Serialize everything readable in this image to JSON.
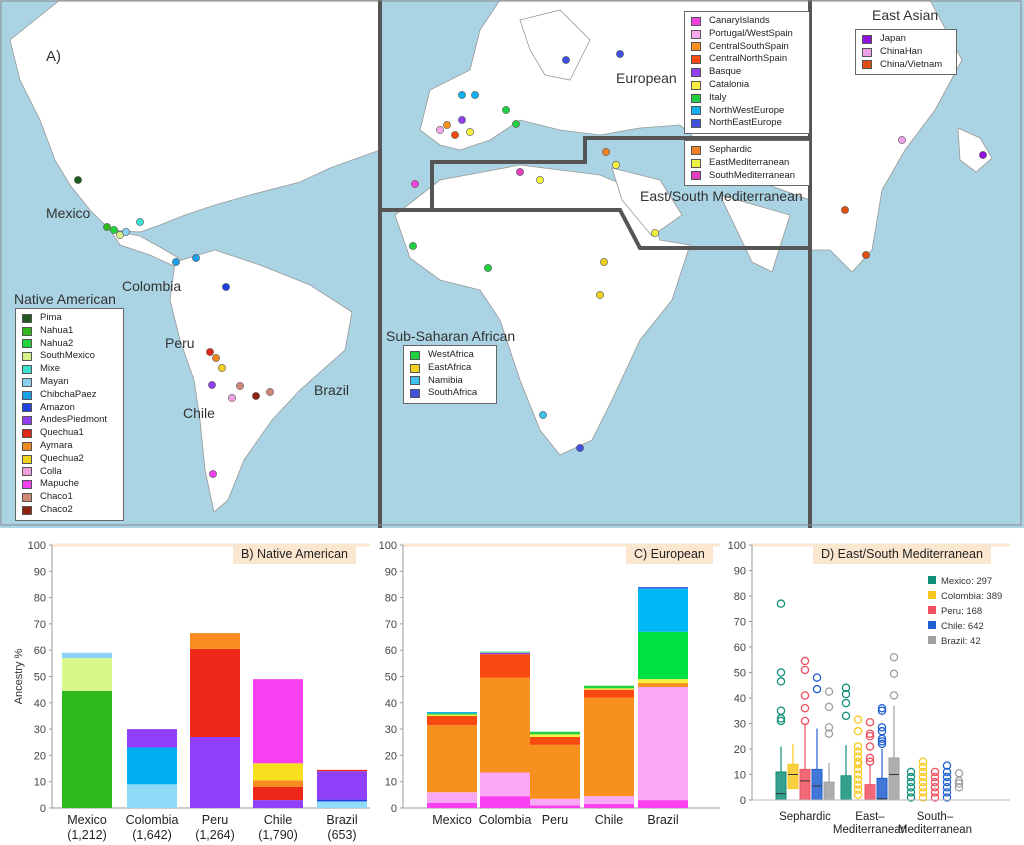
{
  "map": {
    "panel_label": "A)",
    "country_labels": [
      {
        "text": "Mexico",
        "color": "#1a8a5a"
      },
      {
        "text": "Colombia",
        "color": "#e8c020"
      },
      {
        "text": "Peru",
        "color": "#f06070"
      },
      {
        "text": "Chile",
        "color": "#2070d0"
      },
      {
        "text": "Brazil",
        "color": "#777777"
      }
    ],
    "region_labels": {
      "european": "European",
      "med": "East/South Mediterranean",
      "east_asian": "East Asian",
      "ssa": "Sub-Saharan African",
      "native": "Native American"
    },
    "legends": {
      "native": [
        {
          "label": "Pima",
          "color": "#1e5a1e"
        },
        {
          "label": "Nahua1",
          "color": "#2db81c"
        },
        {
          "label": "Nahua2",
          "color": "#22d43a"
        },
        {
          "label": "SouthMexico",
          "color": "#d8f28a"
        },
        {
          "label": "Mixe",
          "color": "#3ae0d0"
        },
        {
          "label": "Mayan",
          "color": "#8ad0f0"
        },
        {
          "label": "ChibchaPaez",
          "color": "#1aa0e8"
        },
        {
          "label": "Amazon",
          "color": "#2040e0"
        },
        {
          "label": "AndesPiedmont",
          "color": "#9040f0"
        },
        {
          "label": "Quechua1",
          "color": "#e02818"
        },
        {
          "label": "Aymara",
          "color": "#f08820"
        },
        {
          "label": "Quechua2",
          "color": "#f0d020"
        },
        {
          "label": "Colla",
          "color": "#f0a0e0"
        },
        {
          "label": "Mapuche",
          "color": "#f040f0"
        },
        {
          "label": "Chaco1",
          "color": "#d08870"
        },
        {
          "label": "Chaco2",
          "color": "#902010"
        }
      ],
      "european": [
        {
          "label": "CanaryIslands",
          "color": "#f040e0"
        },
        {
          "label": "Portugal/WestSpain",
          "color": "#f8a8f0"
        },
        {
          "label": "CentralSouthSpain",
          "color": "#f89020"
        },
        {
          "label": "CentralNorthSpain",
          "color": "#f84a10"
        },
        {
          "label": "Basque",
          "color": "#9040f0"
        },
        {
          "label": "Catalonia",
          "color": "#f8f040"
        },
        {
          "label": "Italy",
          "color": "#20d040"
        },
        {
          "label": "NorthWestEurope",
          "color": "#10b0f0"
        },
        {
          "label": "NorthEastEurope",
          "color": "#4050e0"
        }
      ],
      "med": [
        {
          "label": "Sephardic",
          "color": "#f08020"
        },
        {
          "label": "EastMediterranean",
          "color": "#f0f040"
        },
        {
          "label": "SouthMediterranean",
          "color": "#e040c0"
        }
      ],
      "east_asian": [
        {
          "label": "Japan",
          "color": "#9010e0"
        },
        {
          "label": "ChinaHan",
          "color": "#f0a0e8"
        },
        {
          "label": "China/Vietnam",
          "color": "#e05010"
        }
      ],
      "ssa": [
        {
          "label": "WestAfrica",
          "color": "#20d040"
        },
        {
          "label": "EastAfrica",
          "color": "#f0d020"
        },
        {
          "label": "Namibia",
          "color": "#40c0f0"
        },
        {
          "label": "SouthAfrica",
          "color": "#4050e0"
        }
      ]
    },
    "colors": {
      "ocean": "#aad3e3",
      "land": "#ffffff",
      "border": "#999999",
      "divider": "#555555"
    }
  },
  "chart_data": [
    {
      "type": "bar",
      "stacked": true,
      "title": "B) Native American",
      "ylabel": "Ancestry %",
      "ylim": [
        0,
        100
      ],
      "yticks": [
        "0",
        "10",
        "20",
        "30",
        "40",
        "50",
        "60",
        "70",
        "80",
        "90",
        "100"
      ],
      "categories": [
        "Mexico\n(1,212)",
        "Colombia\n(1,642)",
        "Peru\n(1,264)",
        "Chile\n(1,790)",
        "Brazil\n(653)"
      ],
      "category_names": [
        "Mexico",
        "Colombia",
        "Peru",
        "Chile",
        "Brazil"
      ],
      "category_counts": [
        "(1,212)",
        "(1,642)",
        "(1,264)",
        "(1,790)",
        "(653)"
      ],
      "stacks": [
        [
          {
            "component": "Nahua1",
            "value": 44.5,
            "color": "#2db81c"
          },
          {
            "component": "SouthMexico",
            "value": 12.5,
            "color": "#d8f88a"
          },
          {
            "component": "Mayan",
            "value": 2,
            "color": "#8ad0f8"
          }
        ],
        [
          {
            "component": "Mayan",
            "value": 9,
            "color": "#90dcf8"
          },
          {
            "component": "ChibchaPaez",
            "value": 14,
            "color": "#00b0f0"
          },
          {
            "component": "AndesPiedmont",
            "value": 7,
            "color": "#9040f8"
          }
        ],
        [
          {
            "component": "AndesPiedmont",
            "value": 27,
            "color": "#9040f8"
          },
          {
            "component": "Quechua1",
            "value": 33.5,
            "color": "#ec2818"
          },
          {
            "component": "Aymara",
            "value": 6,
            "color": "#f88c20"
          }
        ],
        [
          {
            "component": "AndesPiedmont",
            "value": 3,
            "color": "#9040f8"
          },
          {
            "component": "Quechua1",
            "value": 5,
            "color": "#ec2818"
          },
          {
            "component": "Aymara",
            "value": 2.5,
            "color": "#f88c20"
          },
          {
            "component": "Quechua2",
            "value": 6.5,
            "color": "#f8e020"
          },
          {
            "component": "Mapuche",
            "value": 32,
            "color": "#f840f0"
          }
        ],
        [
          {
            "component": "Mayan",
            "value": 2.5,
            "color": "#90dcf8"
          },
          {
            "component": "Amazon",
            "value": 0.7,
            "color": "#2040e0"
          },
          {
            "component": "AndesPiedmont",
            "value": 10.8,
            "color": "#9040f8"
          },
          {
            "component": "Quechua1",
            "value": 0.5,
            "color": "#ec2818"
          }
        ]
      ]
    },
    {
      "type": "bar",
      "stacked": true,
      "title": "C) European",
      "ylim": [
        0,
        100
      ],
      "yticks": [
        "0",
        "10",
        "20",
        "30",
        "40",
        "50",
        "60",
        "70",
        "80",
        "90",
        "100"
      ],
      "category_names": [
        "Mexico",
        "Colombia",
        "Peru",
        "Chile",
        "Brazil"
      ],
      "stacks": [
        [
          {
            "component": "CanaryIslands",
            "value": 2,
            "color": "#f840f0"
          },
          {
            "component": "Portugal/WestSpain",
            "value": 4,
            "color": "#f8a8f4"
          },
          {
            "component": "CentralSouthSpain",
            "value": 25.5,
            "color": "#f89020"
          },
          {
            "component": "CentralNorthSpain",
            "value": 3.5,
            "color": "#f84a10"
          },
          {
            "component": "Catalonia",
            "value": 0.5,
            "color": "#f8f040"
          },
          {
            "component": "Italy",
            "value": 0.5,
            "color": "#20d040"
          },
          {
            "component": "NorthWestEurope",
            "value": 0.5,
            "color": "#10b0f0"
          }
        ],
        [
          {
            "component": "CanaryIslands",
            "value": 4.5,
            "color": "#f840f0"
          },
          {
            "component": "Portugal/WestSpain",
            "value": 9,
            "color": "#f8a8f4"
          },
          {
            "component": "CentralSouthSpain",
            "value": 36,
            "color": "#f89020"
          },
          {
            "component": "CentralNorthSpain",
            "value": 9,
            "color": "#f84a10"
          },
          {
            "component": "Basque",
            "value": 0.5,
            "color": "#9040f0"
          },
          {
            "component": "Italy",
            "value": 0.5,
            "color": "#60d890"
          }
        ],
        [
          {
            "component": "CanaryIslands",
            "value": 1,
            "color": "#f840f0"
          },
          {
            "component": "Portugal/WestSpain",
            "value": 2.5,
            "color": "#f8a8f4"
          },
          {
            "component": "CentralSouthSpain",
            "value": 20.5,
            "color": "#f89020"
          },
          {
            "component": "CentralNorthSpain",
            "value": 3,
            "color": "#f84a10"
          },
          {
            "component": "Catalonia",
            "value": 1,
            "color": "#f8f040"
          },
          {
            "component": "Italy",
            "value": 1,
            "color": "#20d040"
          }
        ],
        [
          {
            "component": "CanaryIslands",
            "value": 1.5,
            "color": "#f840f0"
          },
          {
            "component": "Portugal/WestSpain",
            "value": 3,
            "color": "#f8a8f4"
          },
          {
            "component": "CentralSouthSpain",
            "value": 37.5,
            "color": "#f89020"
          },
          {
            "component": "CentralNorthSpain",
            "value": 3,
            "color": "#f84a10"
          },
          {
            "component": "Catalonia",
            "value": 0.5,
            "color": "#f8f040"
          },
          {
            "component": "Italy",
            "value": 1,
            "color": "#20d040"
          }
        ],
        [
          {
            "component": "CanaryIslands",
            "value": 3,
            "color": "#f840f0"
          },
          {
            "component": "Portugal/WestSpain",
            "value": 43,
            "color": "#f8a8f4"
          },
          {
            "component": "CentralSouthSpain",
            "value": 1.5,
            "color": "#f89020"
          },
          {
            "component": "Catalonia",
            "value": 1.5,
            "color": "#f8f040"
          },
          {
            "component": "Italy",
            "value": 18,
            "color": "#00e040"
          },
          {
            "component": "NorthWestEurope",
            "value": 16.5,
            "color": "#00b8f8"
          },
          {
            "component": "NorthEastEurope",
            "value": 0.5,
            "color": "#4050e0"
          }
        ]
      ]
    },
    {
      "type": "boxplot",
      "title": "D) East/South Mediterranean",
      "ylim": [
        0,
        100
      ],
      "yticks": [
        "0",
        "10",
        "20",
        "30",
        "40",
        "50",
        "60",
        "70",
        "80",
        "90",
        "100"
      ],
      "groups": [
        "Sephardic",
        "East–\nMediterranean",
        "South–\nMediterranean"
      ],
      "group_lines": [
        [
          "Sephardic"
        ],
        [
          "East–",
          "Mediterranean"
        ],
        [
          "South–",
          "Mediterranean"
        ]
      ],
      "legend": [
        {
          "label": "Mexico: 297",
          "color": "#10907a"
        },
        {
          "label": "Colombia: 389",
          "color": "#f8c820"
        },
        {
          "label": "Peru: 168",
          "color": "#f05060"
        },
        {
          "label": "Chile: 642",
          "color": "#2060d0"
        },
        {
          "label": "Brazil: 42",
          "color": "#a0a0a0"
        }
      ],
      "boxes": [
        [
          {
            "q1": 0,
            "median": 2.5,
            "q3": 11,
            "whisker": 21,
            "outliers": [
              31,
              32,
              35,
              46.5,
              50,
              77
            ]
          },
          {
            "q1": 4.5,
            "median": 10,
            "q3": 14,
            "whisker": 22,
            "outliers": []
          },
          {
            "q1": 0,
            "median": 7.5,
            "q3": 12,
            "whisker": 30,
            "outliers": [
              31,
              36,
              41,
              51,
              54.5
            ]
          },
          {
            "q1": 0,
            "median": 5.5,
            "q3": 12,
            "whisker": 28,
            "outliers": [
              43.5,
              48
            ]
          },
          {
            "q1": 0,
            "median": 0,
            "q3": 7,
            "whisker": 14.5,
            "outliers": [
              26,
              28.5,
              36.5,
              42.5
            ]
          }
        ],
        [
          {
            "q1": 0,
            "median": 0,
            "q3": 9.5,
            "whisker": 21.5,
            "outliers": [
              33,
              38,
              41.5,
              44
            ]
          },
          {
            "q1": 0,
            "median": 0,
            "q3": 0,
            "whisker": 0,
            "outliers": [
              2,
              4,
              6,
              8,
              10,
              12,
              14,
              15,
              17,
              19,
              21,
              27,
              31.5
            ]
          },
          {
            "q1": 0,
            "median": 0,
            "q3": 6,
            "whisker": 14,
            "outliers": [
              15,
              16.5,
              21,
              25,
              26,
              30.5
            ]
          },
          {
            "q1": 0,
            "median": 0.5,
            "q3": 8.5,
            "whisker": 20,
            "outliers": [
              22,
              23,
              24,
              27,
              28.5,
              35,
              36
            ]
          },
          {
            "q1": 0,
            "median": 10,
            "q3": 16.5,
            "whisker": 37,
            "outliers": [
              41,
              49.5,
              56
            ]
          }
        ],
        [
          {
            "q1": 0,
            "median": 0,
            "q3": 0,
            "whisker": 0,
            "outliers": [
              1,
              3,
              5,
              7,
              9,
              11
            ]
          },
          {
            "q1": 0,
            "median": 0,
            "q3": 0,
            "whisker": 0,
            "outliers": [
              1,
              3,
              5,
              7,
              9,
              11,
              13,
              15
            ]
          },
          {
            "q1": 0,
            "median": 0,
            "q3": 0,
            "whisker": 0,
            "outliers": [
              1,
              3,
              5,
              7,
              9,
              11
            ]
          },
          {
            "q1": 0,
            "median": 0,
            "q3": 0,
            "whisker": 0,
            "outliers": [
              1,
              3,
              5,
              7,
              9,
              11,
              13.5
            ]
          },
          {
            "q1": 0,
            "median": 0,
            "q3": 0,
            "whisker": 0,
            "outliers": [
              5,
              6.5,
              7.5,
              10.5
            ]
          }
        ]
      ]
    }
  ]
}
